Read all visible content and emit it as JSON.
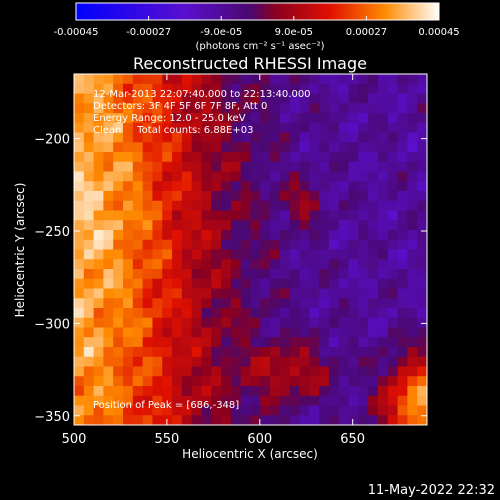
{
  "chart_data": {
    "type": "heatmap",
    "title": "Reconstructed RHESSI Image",
    "xlabel": "Heliocentric X (arcsec)",
    "ylabel": "Heliocentric Y (arcsec)",
    "xlim": [
      500,
      690
    ],
    "ylim": [
      -355,
      -165
    ],
    "x_ticks": [
      500,
      550,
      600,
      650
    ],
    "y_ticks": [
      -200,
      -250,
      -300,
      -350
    ],
    "colorbar": {
      "min": -0.00045,
      "max": 0.00045,
      "tick_labels": [
        "-0.00045",
        "-0.00027",
        "-9.0e-05",
        "9.0e-05",
        "0.00027",
        "0.00045"
      ],
      "unit_label": "(photons cm⁻² s⁻¹ asec⁻²)"
    },
    "annotations": [
      "12-Mar-2013 22:07:40.000 to 22:13:40.000",
      "Detectors: 3F 4F 5F 6F 7F 8F, Att 0",
      "Energy Range: 12.0 - 25.0 keV",
      "Clean     Total counts: 6.88E+03"
    ],
    "peak_label": "Position of Peak = [686,-348]",
    "peak": [
      686,
      -348
    ]
  },
  "footer": {
    "timestamp": "11-May-2022 22:32"
  }
}
